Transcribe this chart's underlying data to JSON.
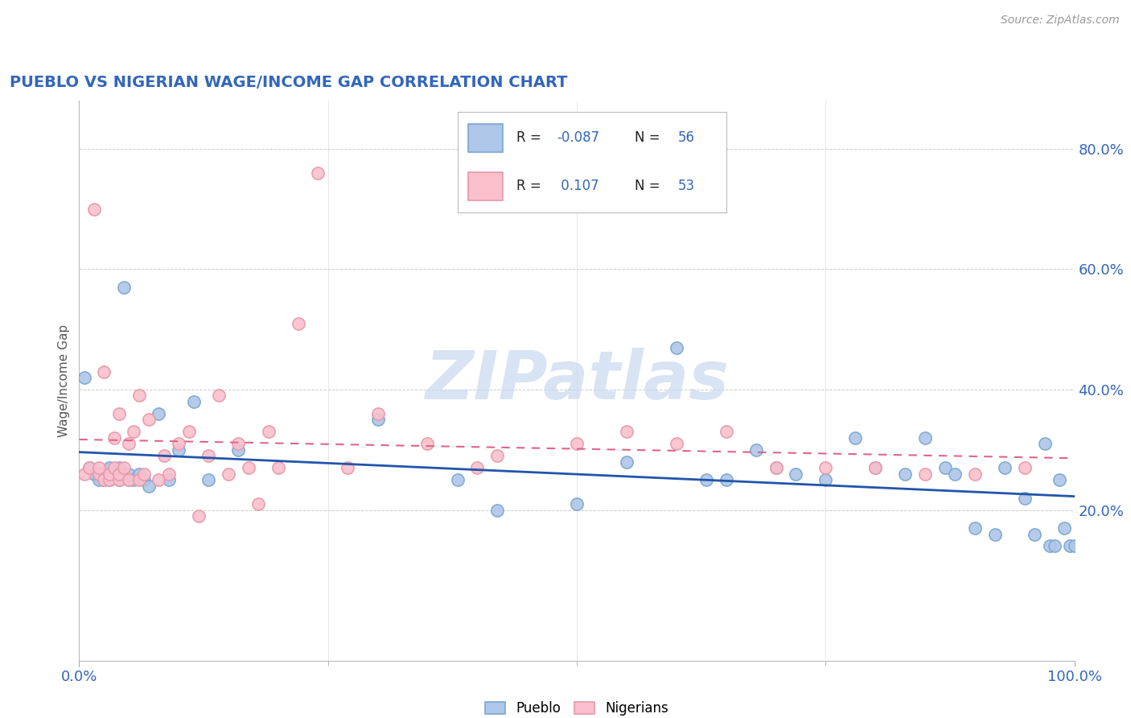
{
  "title": "PUEBLO VS NIGERIAN WAGE/INCOME GAP CORRELATION CHART",
  "source": "Source: ZipAtlas.com",
  "ylabel": "Wage/Income Gap",
  "right_yticks": [
    0.2,
    0.4,
    0.6,
    0.8
  ],
  "right_ytick_labels": [
    "20.0%",
    "40.0%",
    "60.0%",
    "80.0%"
  ],
  "pueblo_color": "#AEC6E8",
  "pueblo_edge_color": "#7BA7D0",
  "nigerian_color": "#F9C0CC",
  "nigerian_edge_color": "#E898AA",
  "pueblo_line_color": "#2255AA",
  "nigerian_line_color": "#DD6688",
  "pueblo_R": -0.087,
  "pueblo_N": 56,
  "nigerian_R": 0.107,
  "nigerian_N": 53,
  "ylim_min": -0.05,
  "ylim_max": 0.88,
  "pueblo_scatter_x": [
    0.005,
    0.01,
    0.015,
    0.02,
    0.02,
    0.025,
    0.03,
    0.03,
    0.03,
    0.035,
    0.04,
    0.04,
    0.04,
    0.045,
    0.05,
    0.05,
    0.055,
    0.06,
    0.065,
    0.07,
    0.08,
    0.09,
    0.1,
    0.115,
    0.13,
    0.16,
    0.3,
    0.38,
    0.42,
    0.5,
    0.55,
    0.6,
    0.63,
    0.65,
    0.68,
    0.7,
    0.72,
    0.75,
    0.78,
    0.8,
    0.83,
    0.85,
    0.87,
    0.88,
    0.9,
    0.92,
    0.93,
    0.95,
    0.96,
    0.97,
    0.975,
    0.98,
    0.985,
    0.99,
    0.995,
    1.0
  ],
  "pueblo_scatter_y": [
    0.42,
    0.27,
    0.26,
    0.25,
    0.26,
    0.25,
    0.25,
    0.26,
    0.27,
    0.26,
    0.25,
    0.26,
    0.27,
    0.57,
    0.25,
    0.26,
    0.25,
    0.26,
    0.25,
    0.24,
    0.36,
    0.25,
    0.3,
    0.38,
    0.25,
    0.3,
    0.35,
    0.25,
    0.2,
    0.21,
    0.28,
    0.47,
    0.25,
    0.25,
    0.3,
    0.27,
    0.26,
    0.25,
    0.32,
    0.27,
    0.26,
    0.32,
    0.27,
    0.26,
    0.17,
    0.16,
    0.27,
    0.22,
    0.16,
    0.31,
    0.14,
    0.14,
    0.25,
    0.17,
    0.14,
    0.14
  ],
  "nigerian_scatter_x": [
    0.005,
    0.01,
    0.015,
    0.02,
    0.02,
    0.025,
    0.025,
    0.03,
    0.03,
    0.035,
    0.035,
    0.04,
    0.04,
    0.04,
    0.045,
    0.05,
    0.05,
    0.055,
    0.06,
    0.06,
    0.065,
    0.07,
    0.08,
    0.085,
    0.09,
    0.1,
    0.11,
    0.12,
    0.13,
    0.14,
    0.15,
    0.16,
    0.17,
    0.18,
    0.19,
    0.2,
    0.22,
    0.24,
    0.27,
    0.3,
    0.35,
    0.4,
    0.42,
    0.5,
    0.55,
    0.6,
    0.65,
    0.7,
    0.75,
    0.8,
    0.85,
    0.9,
    0.95
  ],
  "nigerian_scatter_y": [
    0.26,
    0.27,
    0.7,
    0.26,
    0.27,
    0.25,
    0.43,
    0.25,
    0.26,
    0.27,
    0.32,
    0.25,
    0.26,
    0.36,
    0.27,
    0.25,
    0.31,
    0.33,
    0.25,
    0.39,
    0.26,
    0.35,
    0.25,
    0.29,
    0.26,
    0.31,
    0.33,
    0.19,
    0.29,
    0.39,
    0.26,
    0.31,
    0.27,
    0.21,
    0.33,
    0.27,
    0.51,
    0.76,
    0.27,
    0.36,
    0.31,
    0.27,
    0.29,
    0.31,
    0.33,
    0.31,
    0.33,
    0.27,
    0.27,
    0.27,
    0.26,
    0.26,
    0.27
  ],
  "watermark_text": "ZIPatlas",
  "background_color": "#FFFFFF",
  "grid_color": "#CCCCCC"
}
